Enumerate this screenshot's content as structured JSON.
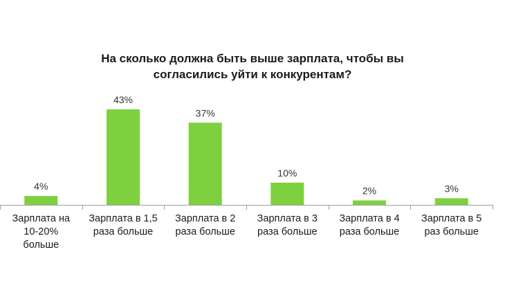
{
  "chart_data": {
    "type": "bar",
    "title_lines": [
      "На сколько должна быть выше зарплата, чтобы вы",
      "согласились уйти к конкурентам?"
    ],
    "categories": [
      [
        "Зарплата на",
        "10-20%",
        "больше"
      ],
      [
        "Зарплата в 1,5",
        "раза больше"
      ],
      [
        "Зарплата в 2",
        "раза больше"
      ],
      [
        "Зарплата в 3",
        "раза больше"
      ],
      [
        "Зарплата в 4",
        "раза больше"
      ],
      [
        "Зарплата в 5",
        "раз больше"
      ]
    ],
    "values": [
      4,
      43,
      37,
      10,
      2,
      3
    ],
    "value_labels": [
      "4%",
      "43%",
      "37%",
      "10%",
      "2%",
      "3%"
    ],
    "ylim": [
      0,
      43
    ],
    "bar_color": "#7ed03f",
    "axis_color": "#9e9e9e",
    "grid": false
  }
}
